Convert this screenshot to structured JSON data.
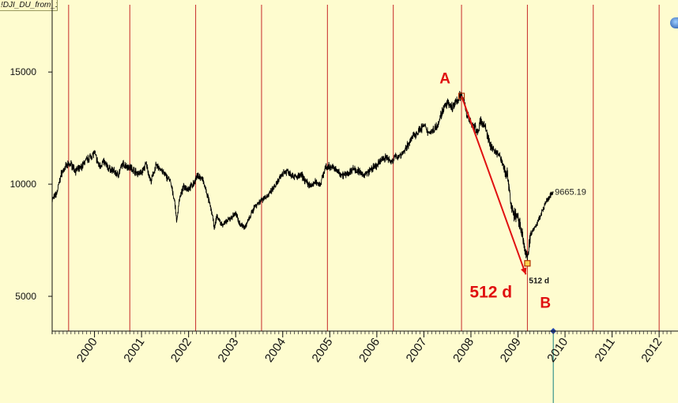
{
  "symbol_tab": "!DJI_DU_from_188...",
  "chart_data": {
    "type": "line",
    "title": "",
    "xlabel": "",
    "ylabel": "",
    "ylim": [
      3450,
      18000
    ],
    "xlim": [
      1999.1,
      2012.3
    ],
    "y_ticks": [
      {
        "value": 15000,
        "label": "15000"
      },
      {
        "value": 10000,
        "label": "10000"
      },
      {
        "value": 5000,
        "label": "5000"
      }
    ],
    "x_ticks": [
      {
        "value": 2000,
        "label": "2000"
      },
      {
        "value": 2001,
        "label": "2001"
      },
      {
        "value": 2002,
        "label": "2002"
      },
      {
        "value": 2003,
        "label": "2003"
      },
      {
        "value": 2004,
        "label": "2004"
      },
      {
        "value": 2005,
        "label": "2005"
      },
      {
        "value": 2006,
        "label": "2006"
      },
      {
        "value": 2007,
        "label": "2007"
      },
      {
        "value": 2008,
        "label": "2008"
      },
      {
        "value": 2009,
        "label": "2009"
      },
      {
        "value": 2010,
        "label": "2010"
      },
      {
        "value": 2011,
        "label": "2011"
      },
      {
        "value": 2012,
        "label": "2012"
      }
    ],
    "vertical_lines": [
      1999.45,
      2000.75,
      2002.15,
      2003.55,
      2004.95,
      2006.35,
      2007.8,
      2009.2,
      2010.6,
      2012.0
    ],
    "cursor_x": 2009.75,
    "series": [
      {
        "x": [
          1999.1,
          1999.2,
          1999.3,
          1999.4,
          1999.5,
          1999.6,
          1999.7,
          1999.8,
          1999.9,
          2000.0,
          2000.1,
          2000.2,
          2000.3,
          2000.4,
          2000.5,
          2000.6,
          2000.7,
          2000.8,
          2000.9,
          2001.0,
          2001.1,
          2001.2,
          2001.3,
          2001.4,
          2001.5,
          2001.6,
          2001.7,
          2001.75,
          2001.8,
          2001.9,
          2002.0,
          2002.1,
          2002.2,
          2002.3,
          2002.4,
          2002.5,
          2002.55,
          2002.6,
          2002.7,
          2002.8,
          2002.9,
          2003.0,
          2003.1,
          2003.2,
          2003.3,
          2003.4,
          2003.5,
          2003.6,
          2003.7,
          2003.8,
          2003.9,
          2004.0,
          2004.1,
          2004.2,
          2004.3,
          2004.4,
          2004.5,
          2004.6,
          2004.7,
          2004.8,
          2004.9,
          2005.0,
          2005.1,
          2005.2,
          2005.3,
          2005.4,
          2005.5,
          2005.6,
          2005.7,
          2005.8,
          2005.9,
          2006.0,
          2006.1,
          2006.2,
          2006.3,
          2006.4,
          2006.5,
          2006.6,
          2006.7,
          2006.8,
          2006.9,
          2007.0,
          2007.1,
          2007.2,
          2007.3,
          2007.4,
          2007.5,
          2007.6,
          2007.7,
          2007.8,
          2007.85,
          2007.9,
          2008.0,
          2008.1,
          2008.15,
          2008.2,
          2008.3,
          2008.4,
          2008.5,
          2008.6,
          2008.7,
          2008.8,
          2008.85,
          2008.9,
          2009.0,
          2009.05,
          2009.1,
          2009.15,
          2009.2,
          2009.25,
          2009.3,
          2009.4,
          2009.5,
          2009.6,
          2009.7,
          2009.75
        ],
        "y": [
          9300,
          9600,
          10500,
          10800,
          10900,
          10600,
          10700,
          11000,
          11200,
          11400,
          10800,
          11000,
          10700,
          10600,
          10400,
          10900,
          10800,
          10700,
          10500,
          10500,
          10900,
          10100,
          10800,
          10700,
          10400,
          10200,
          9300,
          8300,
          9300,
          9900,
          9800,
          10000,
          10400,
          10200,
          9500,
          8700,
          8000,
          8600,
          8200,
          8300,
          8500,
          8700,
          8200,
          8100,
          8500,
          9000,
          9200,
          9400,
          9500,
          9800,
          10100,
          10500,
          10600,
          10400,
          10300,
          10400,
          10100,
          9900,
          10100,
          10000,
          10700,
          10800,
          10700,
          10500,
          10400,
          10500,
          10700,
          10600,
          10400,
          10500,
          10700,
          10800,
          11100,
          11200,
          11000,
          11200,
          11300,
          11500,
          11900,
          12200,
          12400,
          12600,
          12300,
          12400,
          12700,
          13300,
          13600,
          13400,
          13700,
          14000,
          13800,
          13200,
          12700,
          12500,
          12300,
          12800,
          12600,
          11800,
          11500,
          11300,
          10800,
          10200,
          9100,
          8700,
          8500,
          8200,
          7700,
          7000,
          6700,
          7500,
          7900,
          8200,
          8700,
          9200,
          9500,
          9665.19
        ]
      }
    ],
    "last_value_label": "9665.19",
    "annotations": {
      "point_a": {
        "label": "A",
        "x": 2007.8,
        "y": 13930
      },
      "point_b": {
        "label": "B",
        "x": 2009.2,
        "y": 6470
      },
      "duration_small": "512 d",
      "duration_big": "512 d"
    }
  },
  "colors": {
    "background": "#fefccf",
    "price_line": "#000000",
    "grid_line": "#c62828",
    "arrow": "#e01010",
    "annotation_text": "#e01010",
    "cursor": "#108080",
    "marker_fill": "#ffd24d",
    "marker_stroke": "#b03000"
  }
}
